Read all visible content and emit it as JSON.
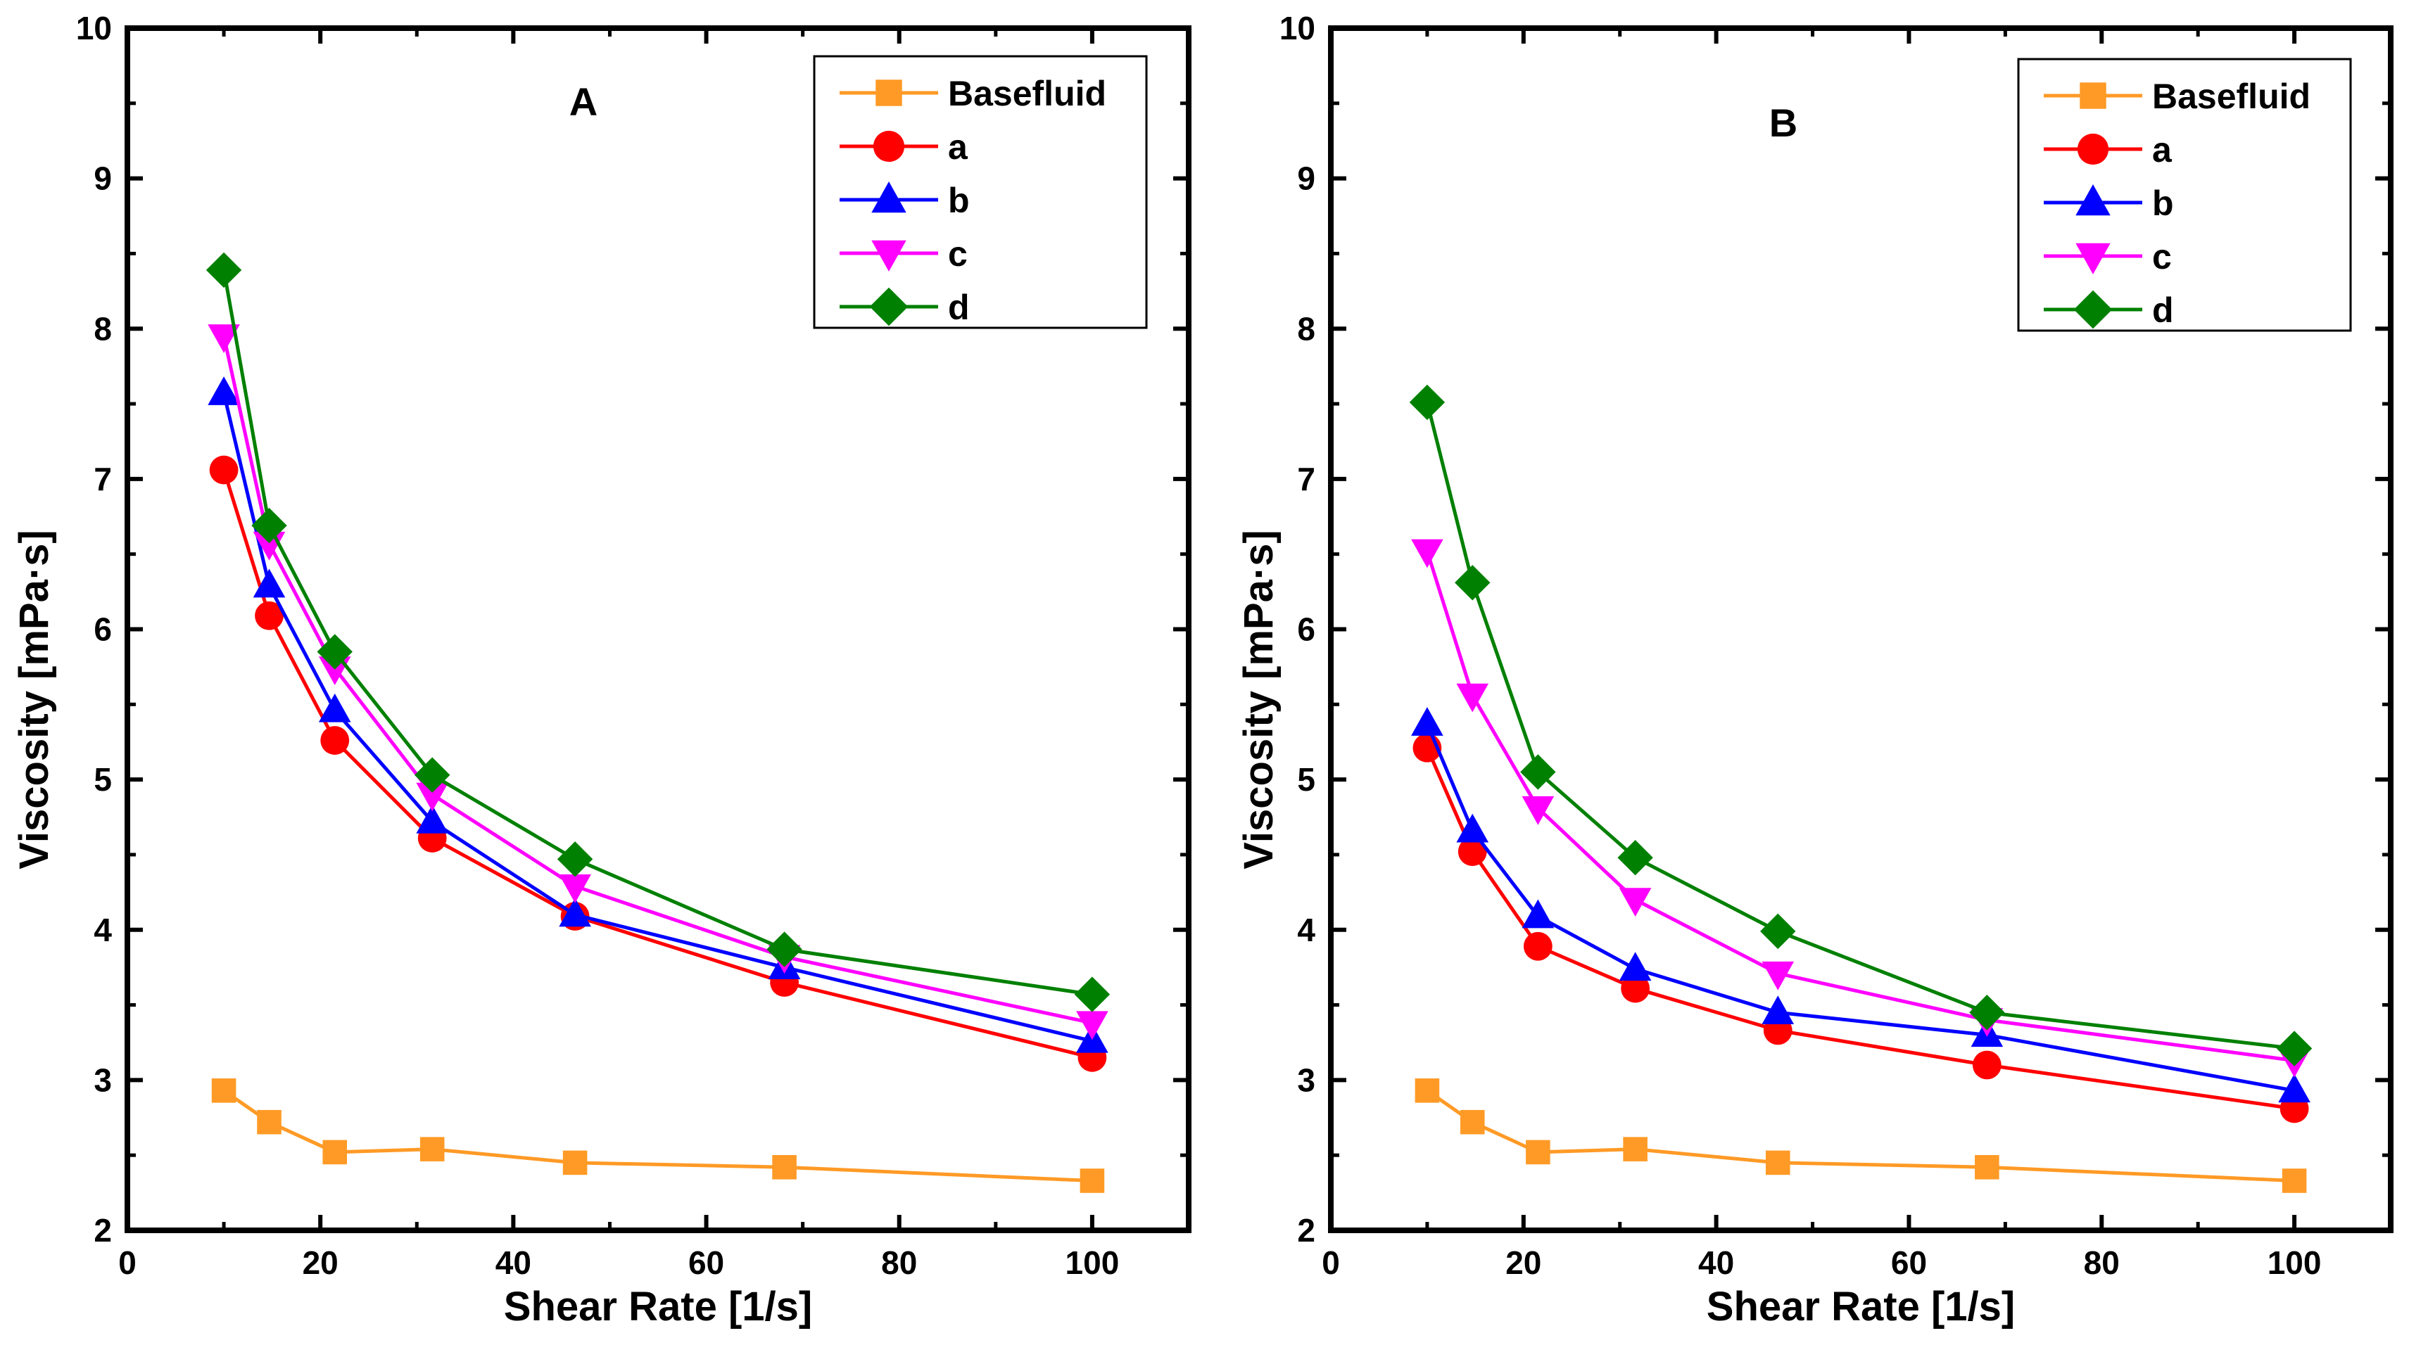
{
  "chart_data": [
    {
      "type": "line",
      "title": "A",
      "xlabel": "Shear Rate [1/s]",
      "ylabel": "Viscosity [mPa·s]",
      "xlim": [
        0,
        110
      ],
      "ylim": [
        2,
        10
      ],
      "xticks": [
        0,
        20,
        40,
        60,
        80,
        100
      ],
      "yticks": [
        2,
        3,
        4,
        5,
        6,
        7,
        8,
        9,
        10
      ],
      "x": [
        10,
        14.7,
        21.5,
        31.6,
        46.4,
        68.1,
        100
      ],
      "legend_position": "top-right",
      "series": [
        {
          "name": "Basefluid",
          "color": "#ff9a26",
          "marker": "square",
          "values": [
            2.93,
            2.72,
            2.52,
            2.54,
            2.45,
            2.42,
            2.33
          ]
        },
        {
          "name": "a",
          "color": "#ff0000",
          "marker": "circle",
          "values": [
            7.06,
            6.09,
            5.26,
            4.61,
            4.09,
            3.65,
            3.15
          ]
        },
        {
          "name": "b",
          "color": "#0000ff",
          "marker": "triangle-up",
          "values": [
            7.57,
            6.29,
            5.46,
            4.72,
            4.1,
            3.75,
            3.26
          ]
        },
        {
          "name": "c",
          "color": "#ff00ff",
          "marker": "triangle-down",
          "values": [
            7.95,
            6.57,
            5.74,
            4.9,
            4.29,
            3.82,
            3.38
          ]
        },
        {
          "name": "d",
          "color": "#008000",
          "marker": "diamond",
          "values": [
            8.39,
            6.69,
            5.85,
            5.03,
            4.47,
            3.87,
            3.57
          ]
        }
      ]
    },
    {
      "type": "line",
      "title": "B",
      "xlabel": "Shear Rate [1/s]",
      "ylabel": "Viscosity [mPa·s]",
      "xlim": [
        0,
        110
      ],
      "ylim": [
        2,
        10
      ],
      "xticks": [
        0,
        20,
        40,
        60,
        80,
        100
      ],
      "yticks": [
        2,
        3,
        4,
        5,
        6,
        7,
        8,
        9,
        10
      ],
      "x": [
        10,
        14.7,
        21.5,
        31.6,
        46.4,
        68.1,
        100
      ],
      "legend_position": "top-right",
      "series": [
        {
          "name": "Basefluid",
          "color": "#ff9a26",
          "marker": "square",
          "values": [
            2.93,
            2.72,
            2.52,
            2.54,
            2.45,
            2.42,
            2.33
          ]
        },
        {
          "name": "a",
          "color": "#ff0000",
          "marker": "circle",
          "values": [
            5.21,
            4.52,
            3.89,
            3.61,
            3.33,
            3.1,
            2.81
          ]
        },
        {
          "name": "b",
          "color": "#0000ff",
          "marker": "triangle-up",
          "values": [
            5.37,
            4.66,
            4.09,
            3.74,
            3.45,
            3.3,
            2.93
          ]
        },
        {
          "name": "c",
          "color": "#ff00ff",
          "marker": "triangle-down",
          "values": [
            6.52,
            5.56,
            4.81,
            4.2,
            3.71,
            3.4,
            3.13
          ]
        },
        {
          "name": "d",
          "color": "#008000",
          "marker": "diamond",
          "values": [
            7.51,
            6.31,
            5.05,
            4.48,
            3.99,
            3.45,
            3.21
          ]
        }
      ]
    }
  ]
}
